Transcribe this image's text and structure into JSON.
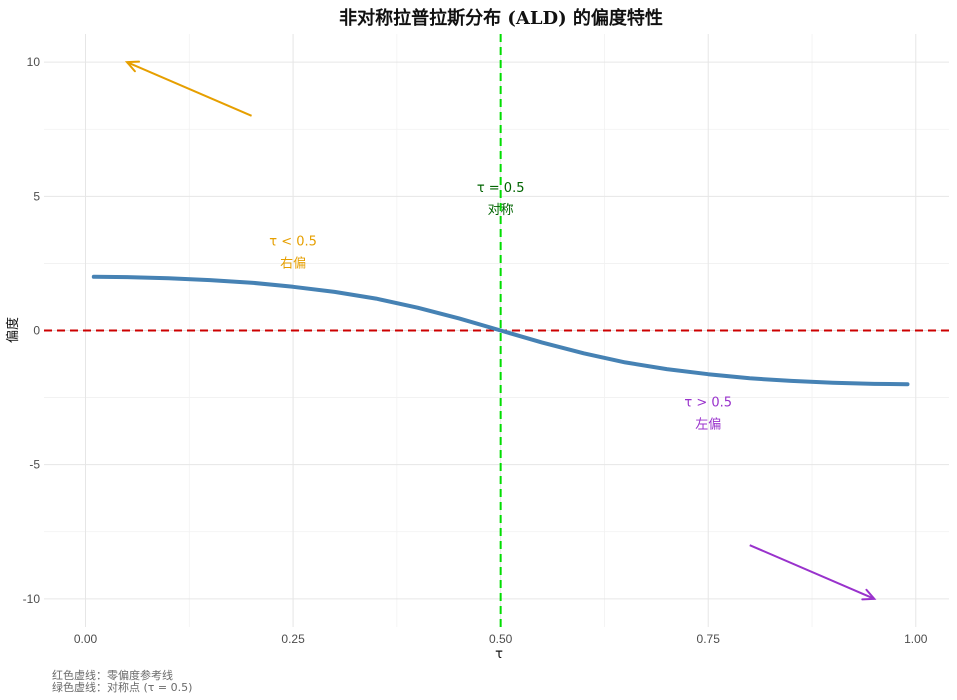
{
  "chart_data": {
    "type": "line",
    "title": "非对称拉普拉斯分布 (ALD) 的偏度特性",
    "xlabel": "τ",
    "ylabel": "偏度",
    "xlim": [
      -0.05,
      1.04
    ],
    "ylim": [
      -11.05,
      11.05
    ],
    "x_ticks": [
      0.0,
      0.25,
      0.5,
      0.75,
      1.0
    ],
    "x_tick_labels": [
      "0.00",
      "0.25",
      "0.50",
      "0.75",
      "1.00"
    ],
    "y_ticks": [
      -10,
      -5,
      0,
      5,
      10
    ],
    "y_tick_labels": [
      "-10",
      "-5",
      "0",
      "5",
      "10"
    ],
    "grid": true,
    "series": [
      {
        "color": "#4682b4",
        "x": [
          0.01,
          0.05,
          0.1,
          0.15,
          0.2,
          0.25,
          0.3,
          0.35,
          0.4,
          0.45,
          0.5,
          0.55,
          0.6,
          0.65,
          0.7,
          0.75,
          0.8,
          0.85,
          0.9,
          0.95,
          0.99
        ],
        "y": [
          2.0,
          1.99,
          1.95,
          1.88,
          1.78,
          1.63,
          1.44,
          1.19,
          0.85,
          0.45,
          0.0,
          -0.45,
          -0.85,
          -1.19,
          -1.44,
          -1.63,
          -1.78,
          -1.88,
          -1.95,
          -1.99,
          -2.0
        ]
      }
    ],
    "reference_lines": [
      {
        "orientation": "horizontal",
        "value": 0,
        "color": "#cc0000",
        "style": "dashed"
      },
      {
        "orientation": "vertical",
        "value": 0.5,
        "color": "#00dd00",
        "style": "dashed"
      }
    ],
    "annotations": [
      {
        "lines": [
          "τ < 0.5",
          "右偏"
        ],
        "x": 0.25,
        "y": 2.9,
        "color": "#e69f00"
      },
      {
        "lines": [
          "τ = 0.5",
          "对称"
        ],
        "x": 0.5,
        "y": 4.9,
        "color": "#006400"
      },
      {
        "lines": [
          "τ > 0.5",
          "左偏"
        ],
        "x": 0.75,
        "y": -3.1,
        "color": "#9932cc"
      }
    ],
    "arrows": [
      {
        "x1": 0.2,
        "y1": 8,
        "x2": 0.05,
        "y2": 10,
        "color": "#e69f00"
      },
      {
        "x1": 0.8,
        "y1": -8,
        "x2": 0.95,
        "y2": -10,
        "color": "#9932cc"
      }
    ],
    "caption_lines": [
      "红色虚线：零偏度参考线",
      "绿色虚线：对称点 (τ = 0.5)"
    ]
  }
}
